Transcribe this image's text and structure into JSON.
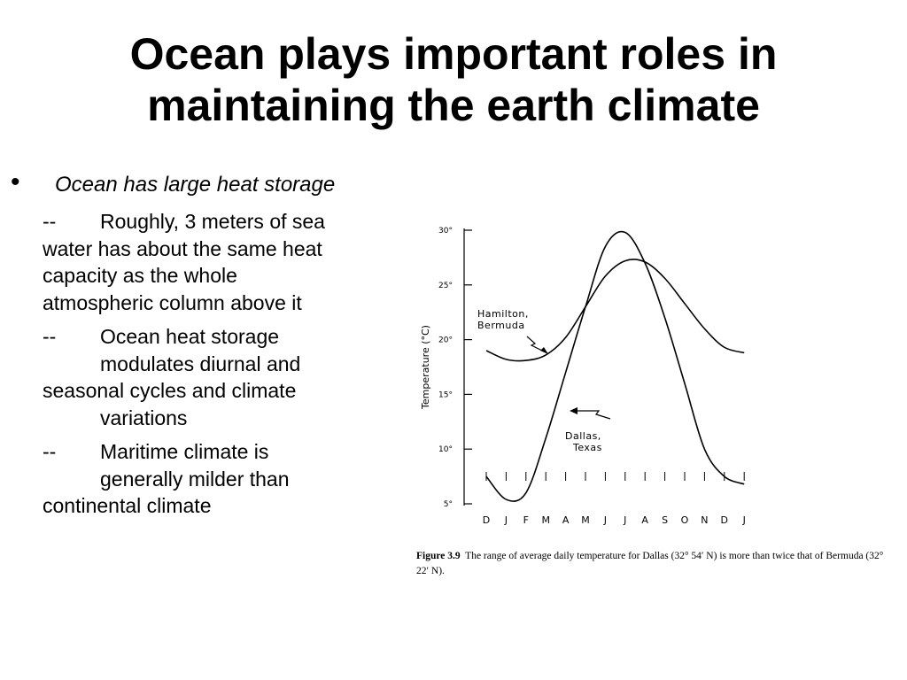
{
  "slide": {
    "title_line1": "Ocean plays important roles in",
    "title_line2": "maintaining the earth climate",
    "bullet": "Ocean has large heat storage",
    "subpoints": [
      {
        "dash": "--",
        "line1": "Roughly, 3 meters of sea",
        "line2": "water has about the same heat",
        "line3": "capacity as the whole",
        "line4": "atmospheric column  above it"
      },
      {
        "dash": "--",
        "line1": "Ocean heat storage",
        "line2": "modulates diurnal and",
        "line3": "seasonal cycles and  climate",
        "line4": "variations"
      },
      {
        "dash": "--",
        "line1": "Maritime climate is",
        "line2": "generally milder than",
        "line3": "continental climate"
      }
    ]
  },
  "figure": {
    "caption_label": "Figure 3.9",
    "caption_text": "The range of average daily temperature for Dallas (32° 54′ N) is more than twice that of Bermuda (32° 22′ N)."
  },
  "chart_data": {
    "type": "line",
    "title": "",
    "xlabel": "",
    "ylabel": "Temperature (°C)",
    "ylim": [
      5,
      30
    ],
    "yticks": [
      5,
      10,
      15,
      20,
      25,
      30
    ],
    "ytick_labels": [
      "5°",
      "10°",
      "15°",
      "20°",
      "25°",
      "30°"
    ],
    "x": [
      "D",
      "J",
      "F",
      "M",
      "A",
      "M",
      "J",
      "J",
      "A",
      "S",
      "O",
      "N",
      "D",
      "J"
    ],
    "grid": false,
    "series": [
      {
        "name": "Hamilton, Bermuda",
        "label_lines": [
          "Hamilton,",
          "Bermuda"
        ],
        "color": "#000000",
        "values": [
          19.0,
          18.2,
          18.1,
          18.6,
          20.2,
          23.0,
          25.8,
          27.2,
          27.1,
          25.6,
          23.3,
          21.0,
          19.3,
          18.8
        ]
      },
      {
        "name": "Dallas, Texas",
        "label_lines": [
          "Dallas,",
          "Texas"
        ],
        "color": "#000000",
        "values": [
          7.5,
          5.4,
          6.0,
          11.0,
          17.0,
          23.0,
          28.5,
          29.8,
          27.0,
          22.0,
          16.0,
          10.0,
          7.5,
          6.8
        ]
      }
    ]
  }
}
